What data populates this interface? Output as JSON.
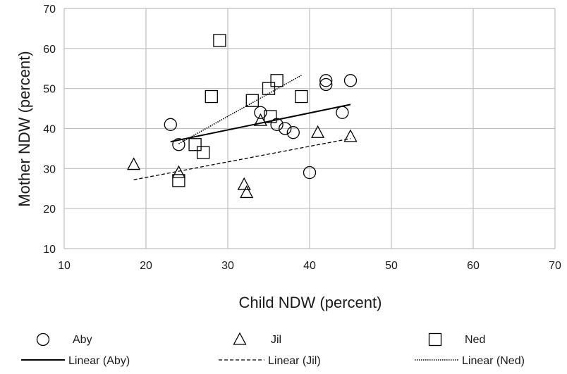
{
  "chart_data": {
    "type": "scatter",
    "title": "",
    "xlabel": "Child NDW (percent)",
    "ylabel": "Mother NDW (percent)",
    "xlim": [
      10,
      70
    ],
    "ylim": [
      10,
      70
    ],
    "xticks": [
      10,
      20,
      30,
      40,
      50,
      60,
      70
    ],
    "yticks": [
      10,
      20,
      30,
      40,
      50,
      60,
      70
    ],
    "grid": true,
    "legend_position": "bottom",
    "series": [
      {
        "name": "Aby",
        "marker": "circle",
        "points": [
          {
            "x": 23,
            "y": 41
          },
          {
            "x": 24,
            "y": 36
          },
          {
            "x": 34,
            "y": 44
          },
          {
            "x": 36,
            "y": 41
          },
          {
            "x": 37,
            "y": 40
          },
          {
            "x": 38,
            "y": 39
          },
          {
            "x": 40,
            "y": 29
          },
          {
            "x": 42,
            "y": 52
          },
          {
            "x": 42,
            "y": 51
          },
          {
            "x": 44,
            "y": 44
          },
          {
            "x": 45,
            "y": 52
          }
        ]
      },
      {
        "name": "Jil",
        "marker": "triangle",
        "points": [
          {
            "x": 18.5,
            "y": 31
          },
          {
            "x": 24,
            "y": 29
          },
          {
            "x": 32,
            "y": 26
          },
          {
            "x": 32.3,
            "y": 24
          },
          {
            "x": 34,
            "y": 42
          },
          {
            "x": 41,
            "y": 39
          },
          {
            "x": 45,
            "y": 38
          }
        ]
      },
      {
        "name": "Ned",
        "marker": "square",
        "points": [
          {
            "x": 24,
            "y": 27
          },
          {
            "x": 26,
            "y": 36
          },
          {
            "x": 27,
            "y": 34
          },
          {
            "x": 28,
            "y": 48
          },
          {
            "x": 29,
            "y": 62
          },
          {
            "x": 33,
            "y": 47
          },
          {
            "x": 35,
            "y": 50
          },
          {
            "x": 35.2,
            "y": 43
          },
          {
            "x": 36,
            "y": 52
          },
          {
            "x": 39,
            "y": 48
          }
        ]
      }
    ],
    "trendlines": [
      {
        "name": "Linear (Aby)",
        "style": "solid",
        "from": {
          "x": 23,
          "y": 36.7
        },
        "to": {
          "x": 45,
          "y": 46
        }
      },
      {
        "name": "Linear (Jil)",
        "style": "dashed",
        "from": {
          "x": 18.5,
          "y": 27.2
        },
        "to": {
          "x": 45,
          "y": 37.5
        }
      },
      {
        "name": "Linear (Ned)",
        "style": "dotted",
        "from": {
          "x": 24,
          "y": 36.2
        },
        "to": {
          "x": 39,
          "y": 53.3
        }
      }
    ],
    "colors": {
      "marks": "#000000",
      "grid": "#bfbfbf"
    }
  }
}
